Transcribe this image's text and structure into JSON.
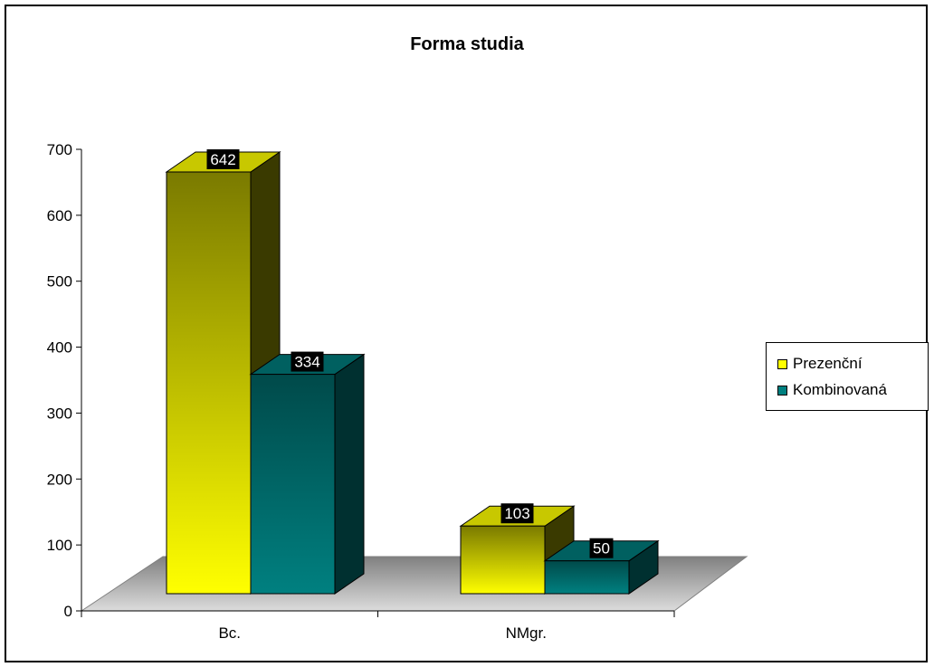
{
  "chart_data": {
    "type": "bar",
    "title": "Forma studia",
    "categories": [
      "Bc.",
      "NMgr."
    ],
    "series": [
      {
        "name": "Prezenční",
        "values": [
          642,
          103
        ],
        "color": "#ffff00"
      },
      {
        "name": "Kombinovaná",
        "values": [
          334,
          50
        ],
        "color": "#008080"
      }
    ],
    "ylim": [
      0,
      700
    ],
    "yticks": [
      0,
      100,
      200,
      300,
      400,
      500,
      600,
      700
    ],
    "data_labels": true,
    "legend_position": "right",
    "grid": false,
    "style": "3d-clustered-column"
  }
}
